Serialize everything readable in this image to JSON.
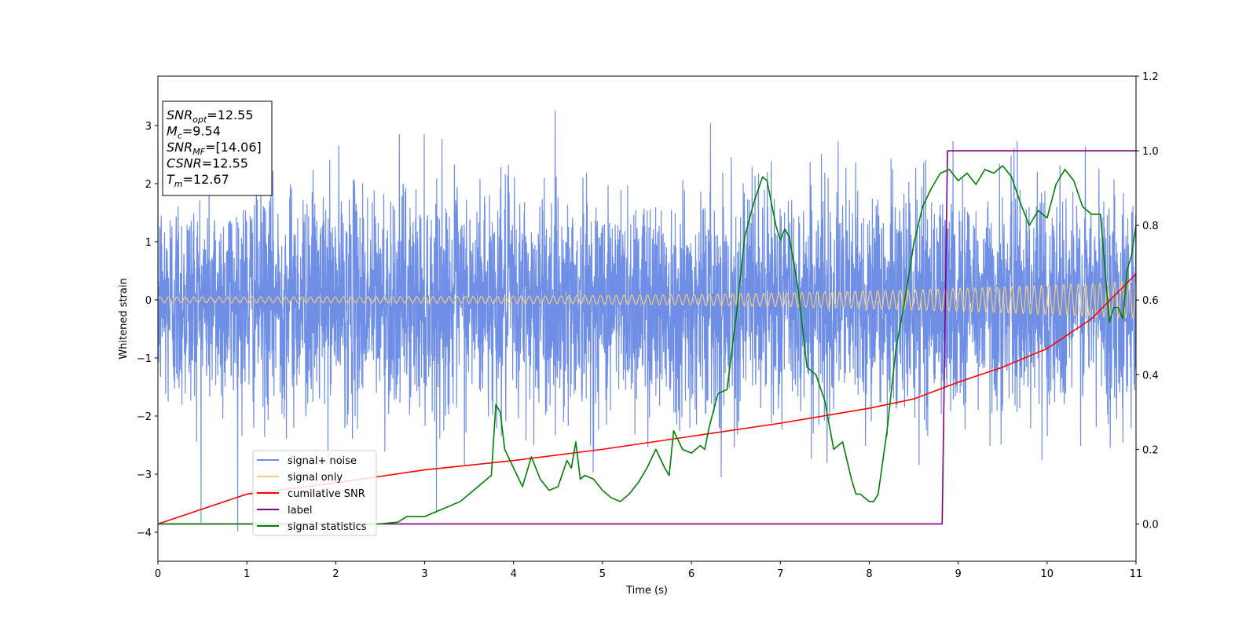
{
  "chart_data": {
    "type": "line",
    "title": "",
    "xlabel": "Time (s)",
    "ylabel": "Whitened strain",
    "y2label": "",
    "xlim": [
      0,
      11
    ],
    "ylim": [
      -4.5,
      3.85
    ],
    "y2lim": [
      -0.1,
      1.2
    ],
    "xticks": [
      "0",
      "1",
      "2",
      "3",
      "4",
      "5",
      "6",
      "7",
      "8",
      "9",
      "10",
      "11"
    ],
    "yticks": [
      "−4",
      "−3",
      "−2",
      "−1",
      "0",
      "1",
      "2",
      "3"
    ],
    "y2ticks": [
      "0.0",
      "0.2",
      "0.4",
      "0.6",
      "0.8",
      "1.0",
      "1.2"
    ],
    "grid": false,
    "legend_location": "lower-left",
    "annotation": {
      "lines": [
        {
          "label": "SNR",
          "sub": "opt",
          "value": "=12.55"
        },
        {
          "label": "M",
          "sub": "c",
          "value": "=9.54"
        },
        {
          "label": "SNR",
          "sub": "MF",
          "value": "=[14.06]"
        },
        {
          "label": "CSNR",
          "sub": "",
          "value": "=12.55"
        },
        {
          "label": "T",
          "sub": "m",
          "value": "=12.67"
        }
      ]
    },
    "series": [
      {
        "name": "signal+ noise",
        "axis": "left",
        "color": "#6f8fe6",
        "std": 0.95,
        "envelope": "noise band approx ±2.5, spikes to about ±3.5"
      },
      {
        "name": "signal only",
        "axis": "left",
        "color": "#f5c97a",
        "amplitude_start": 0.05,
        "amplitude_end": 0.32
      },
      {
        "name": "cumilative SNR",
        "axis": "right",
        "color": "#ff0000",
        "x": [
          0,
          1,
          2,
          3,
          4,
          5,
          6,
          7,
          8,
          8.5,
          9,
          9.5,
          10,
          10.5,
          11
        ],
        "values": [
          0.0,
          0.08,
          0.11,
          0.145,
          0.17,
          0.2,
          0.235,
          0.27,
          0.31,
          0.335,
          0.38,
          0.42,
          0.47,
          0.55,
          0.67
        ]
      },
      {
        "name": "label",
        "axis": "right",
        "color": "#800080",
        "x": [
          0,
          8.82,
          8.88,
          11
        ],
        "values": [
          0,
          0,
          1,
          1
        ]
      },
      {
        "name": "signal statistics",
        "axis": "right",
        "color": "#008000",
        "x": [
          0,
          1,
          2,
          2.5,
          2.7,
          2.8,
          3.0,
          3.1,
          3.2,
          3.3,
          3.4,
          3.5,
          3.6,
          3.65,
          3.7,
          3.75,
          3.8,
          3.85,
          3.9,
          4.0,
          4.1,
          4.2,
          4.3,
          4.4,
          4.5,
          4.6,
          4.65,
          4.7,
          4.75,
          4.8,
          4.9,
          5.0,
          5.1,
          5.2,
          5.3,
          5.4,
          5.5,
          5.6,
          5.7,
          5.75,
          5.8,
          5.9,
          6.0,
          6.1,
          6.15,
          6.2,
          6.3,
          6.4,
          6.5,
          6.6,
          6.7,
          6.8,
          6.85,
          6.95,
          7.0,
          7.05,
          7.1,
          7.15,
          7.2,
          7.3,
          7.4,
          7.5,
          7.6,
          7.7,
          7.8,
          7.85,
          7.9,
          8.0,
          8.05,
          8.1,
          8.2,
          8.3,
          8.4,
          8.5,
          8.6,
          8.7,
          8.8,
          8.9,
          9.0,
          9.1,
          9.2,
          9.3,
          9.4,
          9.5,
          9.6,
          9.7,
          9.8,
          9.9,
          10.0,
          10.1,
          10.2,
          10.3,
          10.4,
          10.5,
          10.6,
          10.7,
          10.75,
          10.8,
          10.85,
          10.9,
          10.95,
          11.0
        ],
        "values": [
          0.0,
          0.0,
          0.0,
          0.0,
          0.005,
          0.02,
          0.02,
          0.03,
          0.04,
          0.05,
          0.06,
          0.08,
          0.1,
          0.11,
          0.12,
          0.13,
          0.32,
          0.3,
          0.2,
          0.15,
          0.1,
          0.18,
          0.12,
          0.09,
          0.1,
          0.17,
          0.15,
          0.22,
          0.12,
          0.13,
          0.12,
          0.09,
          0.07,
          0.06,
          0.08,
          0.11,
          0.15,
          0.2,
          0.15,
          0.13,
          0.25,
          0.2,
          0.19,
          0.21,
          0.2,
          0.26,
          0.35,
          0.36,
          0.55,
          0.77,
          0.86,
          0.93,
          0.92,
          0.8,
          0.76,
          0.79,
          0.77,
          0.7,
          0.63,
          0.42,
          0.4,
          0.33,
          0.2,
          0.22,
          0.12,
          0.08,
          0.08,
          0.06,
          0.06,
          0.08,
          0.25,
          0.47,
          0.6,
          0.75,
          0.85,
          0.9,
          0.94,
          0.95,
          0.92,
          0.94,
          0.91,
          0.95,
          0.94,
          0.96,
          0.93,
          0.86,
          0.8,
          0.84,
          0.82,
          0.91,
          0.95,
          0.92,
          0.85,
          0.83,
          0.83,
          0.54,
          0.58,
          0.58,
          0.55,
          0.68,
          0.72,
          0.8
        ]
      }
    ]
  }
}
